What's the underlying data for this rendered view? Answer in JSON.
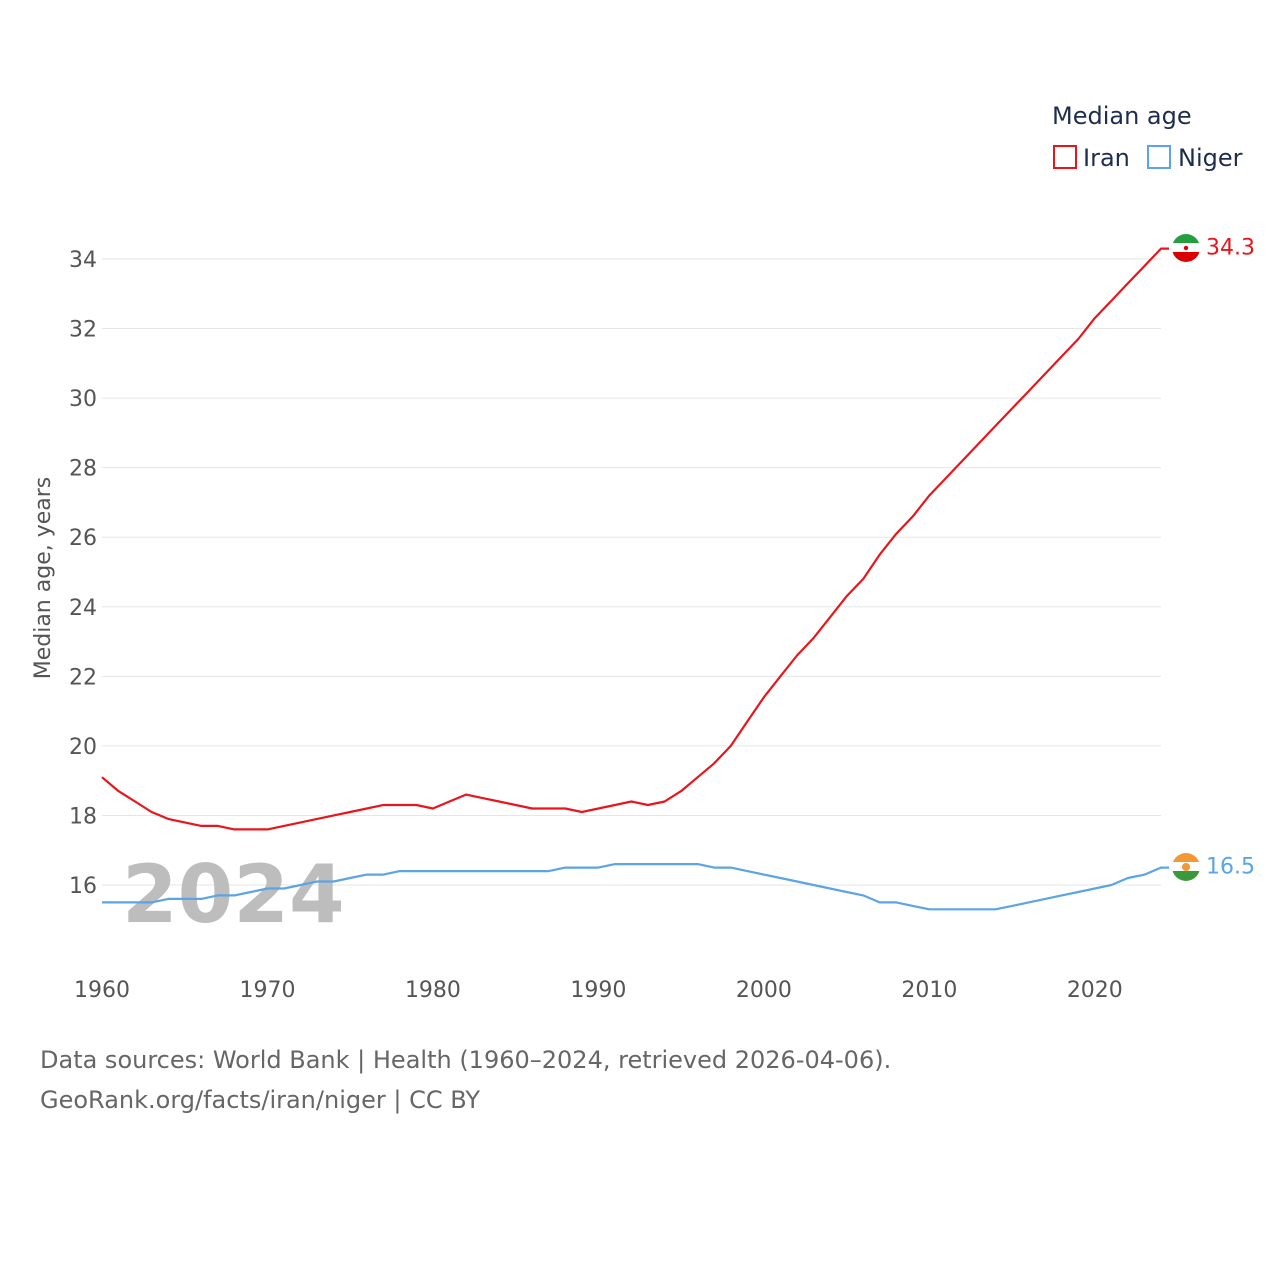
{
  "legend": {
    "title": "Median age",
    "items": [
      {
        "name": "Iran",
        "color": "#e8161b"
      },
      {
        "name": "Niger",
        "color": "#5ba4e5"
      }
    ]
  },
  "watermark_year": "2024",
  "footer": {
    "line1": "Data sources: World Bank | Health (1960–2024, retrieved 2026-04-06).",
    "line2": "GeoRank.org/facts/iran/niger | CC BY"
  },
  "chart_data": {
    "type": "line",
    "title": "Median age",
    "xlabel": "",
    "ylabel": "Median age, years",
    "xlim": [
      1960,
      2024
    ],
    "ylim": [
      14.5,
      35
    ],
    "x_ticks": [
      1960,
      1970,
      1980,
      1990,
      2000,
      2010,
      2020
    ],
    "y_ticks": [
      16,
      18,
      20,
      22,
      24,
      26,
      28,
      30,
      32,
      34
    ],
    "grid": true,
    "legend_position": "top-right",
    "x": [
      1960,
      1961,
      1962,
      1963,
      1964,
      1965,
      1966,
      1967,
      1968,
      1969,
      1970,
      1971,
      1972,
      1973,
      1974,
      1975,
      1976,
      1977,
      1978,
      1979,
      1980,
      1981,
      1982,
      1983,
      1984,
      1985,
      1986,
      1987,
      1988,
      1989,
      1990,
      1991,
      1992,
      1993,
      1994,
      1995,
      1996,
      1997,
      1998,
      1999,
      2000,
      2001,
      2002,
      2003,
      2004,
      2005,
      2006,
      2007,
      2008,
      2009,
      2010,
      2011,
      2012,
      2013,
      2014,
      2015,
      2016,
      2017,
      2018,
      2019,
      2020,
      2021,
      2022,
      2023,
      2024
    ],
    "series": [
      {
        "name": "Iran",
        "color": "#e8161b",
        "end_label": "34.3",
        "values": [
          19.1,
          18.7,
          18.4,
          18.1,
          17.9,
          17.8,
          17.7,
          17.7,
          17.6,
          17.6,
          17.6,
          17.7,
          17.8,
          17.9,
          18.0,
          18.1,
          18.2,
          18.3,
          18.3,
          18.3,
          18.2,
          18.4,
          18.6,
          18.5,
          18.4,
          18.3,
          18.2,
          18.2,
          18.2,
          18.1,
          18.2,
          18.3,
          18.4,
          18.3,
          18.4,
          18.7,
          19.1,
          19.5,
          20.0,
          20.7,
          21.4,
          22.0,
          22.6,
          23.1,
          23.7,
          24.3,
          24.8,
          25.5,
          26.1,
          26.6,
          27.2,
          27.7,
          28.2,
          28.7,
          29.2,
          29.7,
          30.2,
          30.7,
          31.2,
          31.7,
          32.3,
          32.8,
          33.3,
          33.8,
          34.3
        ]
      },
      {
        "name": "Niger",
        "color": "#5ba4e5",
        "end_label": "16.5",
        "values": [
          15.5,
          15.5,
          15.5,
          15.5,
          15.6,
          15.6,
          15.6,
          15.7,
          15.7,
          15.8,
          15.9,
          15.9,
          16.0,
          16.1,
          16.1,
          16.2,
          16.3,
          16.3,
          16.4,
          16.4,
          16.4,
          16.4,
          16.4,
          16.4,
          16.4,
          16.4,
          16.4,
          16.4,
          16.5,
          16.5,
          16.5,
          16.6,
          16.6,
          16.6,
          16.6,
          16.6,
          16.6,
          16.5,
          16.5,
          16.4,
          16.3,
          16.2,
          16.1,
          16.0,
          15.9,
          15.8,
          15.7,
          15.5,
          15.5,
          15.4,
          15.3,
          15.3,
          15.3,
          15.3,
          15.3,
          15.4,
          15.5,
          15.6,
          15.7,
          15.8,
          15.9,
          16.0,
          16.2,
          16.3,
          16.5
        ]
      }
    ]
  }
}
